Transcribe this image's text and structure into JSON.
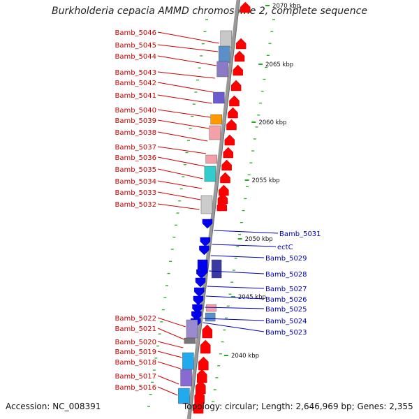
{
  "title": "Burkholderia cepacia AMMD chromosome 2, complete sequence",
  "accession": "Accession: NC_008391",
  "summary": "Topology: circular; Length: 2,646,969 bp; Genes: 2,355",
  "colors": {
    "left_label": "#cc0000",
    "right_label": "#0000bb",
    "forward": "#ff0000",
    "reverse": "#0000ee",
    "scale_dot": "#22aa22",
    "backbone": "#999999"
  },
  "ruler": [
    {
      "label": "2070 kbp"
    },
    {
      "label": "2065 kbp"
    },
    {
      "label": "2060 kbp"
    },
    {
      "label": "2055 kbp"
    },
    {
      "label": "2050 kbp"
    },
    {
      "label": "2045 kbp"
    },
    {
      "label": "2040 kbp"
    }
  ],
  "left_genes": [
    {
      "name": "Bamb_5046"
    },
    {
      "name": "Bamb_5045"
    },
    {
      "name": "Bamb_5044"
    },
    {
      "name": "Bamb_5043"
    },
    {
      "name": "Bamb_5042"
    },
    {
      "name": "Bamb_5041"
    },
    {
      "name": "Bamb_5040"
    },
    {
      "name": "Bamb_5039"
    },
    {
      "name": "Bamb_5038"
    },
    {
      "name": "Bamb_5037"
    },
    {
      "name": "Bamb_5036"
    },
    {
      "name": "Bamb_5035"
    },
    {
      "name": "Bamb_5034"
    },
    {
      "name": "Bamb_5033"
    },
    {
      "name": "Bamb_5032"
    },
    {
      "name": "Bamb_5022"
    },
    {
      "name": "Bamb_5021"
    },
    {
      "name": "Bamb_5020"
    },
    {
      "name": "Bamb_5019"
    },
    {
      "name": "Bamb_5018"
    },
    {
      "name": "Bamb_5017"
    },
    {
      "name": "Bamb_5016"
    }
  ],
  "right_genes": [
    {
      "name": "Bamb_5031"
    },
    {
      "name": "ectC"
    },
    {
      "name": "Bamb_5029"
    },
    {
      "name": "Bamb_5028"
    },
    {
      "name": "Bamb_5027"
    },
    {
      "name": "Bamb_5026"
    },
    {
      "name": "Bamb_5025"
    },
    {
      "name": "Bamb_5024"
    },
    {
      "name": "Bamb_5023"
    }
  ]
}
